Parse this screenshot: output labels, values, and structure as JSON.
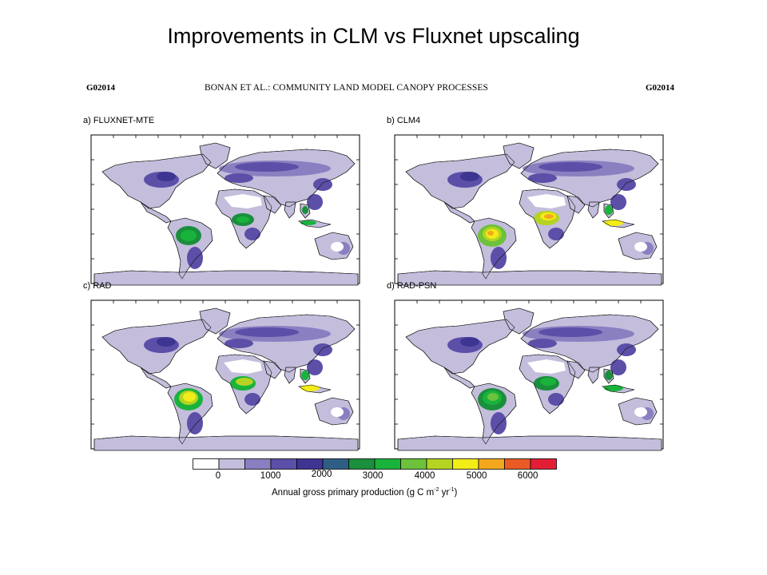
{
  "slide": {
    "title": "Improvements in CLM vs Fluxnet upscaling"
  },
  "paper_header": {
    "left": "G02014",
    "center": "BONAN ET AL.: COMMUNITY LAND MODEL CANOPY PROCESSES",
    "right": "G02014"
  },
  "panels": [
    {
      "label": "a) FLUXNET-MTE",
      "scenario": "fluxnet"
    },
    {
      "label": "b) CLM4",
      "scenario": "clm4"
    },
    {
      "label": "c) RAD",
      "scenario": "rad"
    },
    {
      "label": "d) RAD-PSN",
      "scenario": "radpsn"
    }
  ],
  "colorbar": {
    "colors": [
      "#ffffff",
      "#c4bddc",
      "#8a7fc0",
      "#5b4fa8",
      "#3e3592",
      "#2e5e86",
      "#1a8f3c",
      "#19b33c",
      "#6cc23b",
      "#b4d323",
      "#f2ec18",
      "#f4a71d",
      "#ea5a24",
      "#e31d35"
    ],
    "tick_labels": [
      "0",
      "1000",
      "2000",
      "3000",
      "4000",
      "5000",
      "6000"
    ],
    "tick_values": [
      0,
      1000,
      2000,
      3000,
      4000,
      5000,
      6000
    ],
    "title": "Annual gross primary production (g C m",
    "title_sup1": "-2",
    "title_mid": " yr",
    "title_sup2": "-1",
    "title_end": ")"
  }
}
